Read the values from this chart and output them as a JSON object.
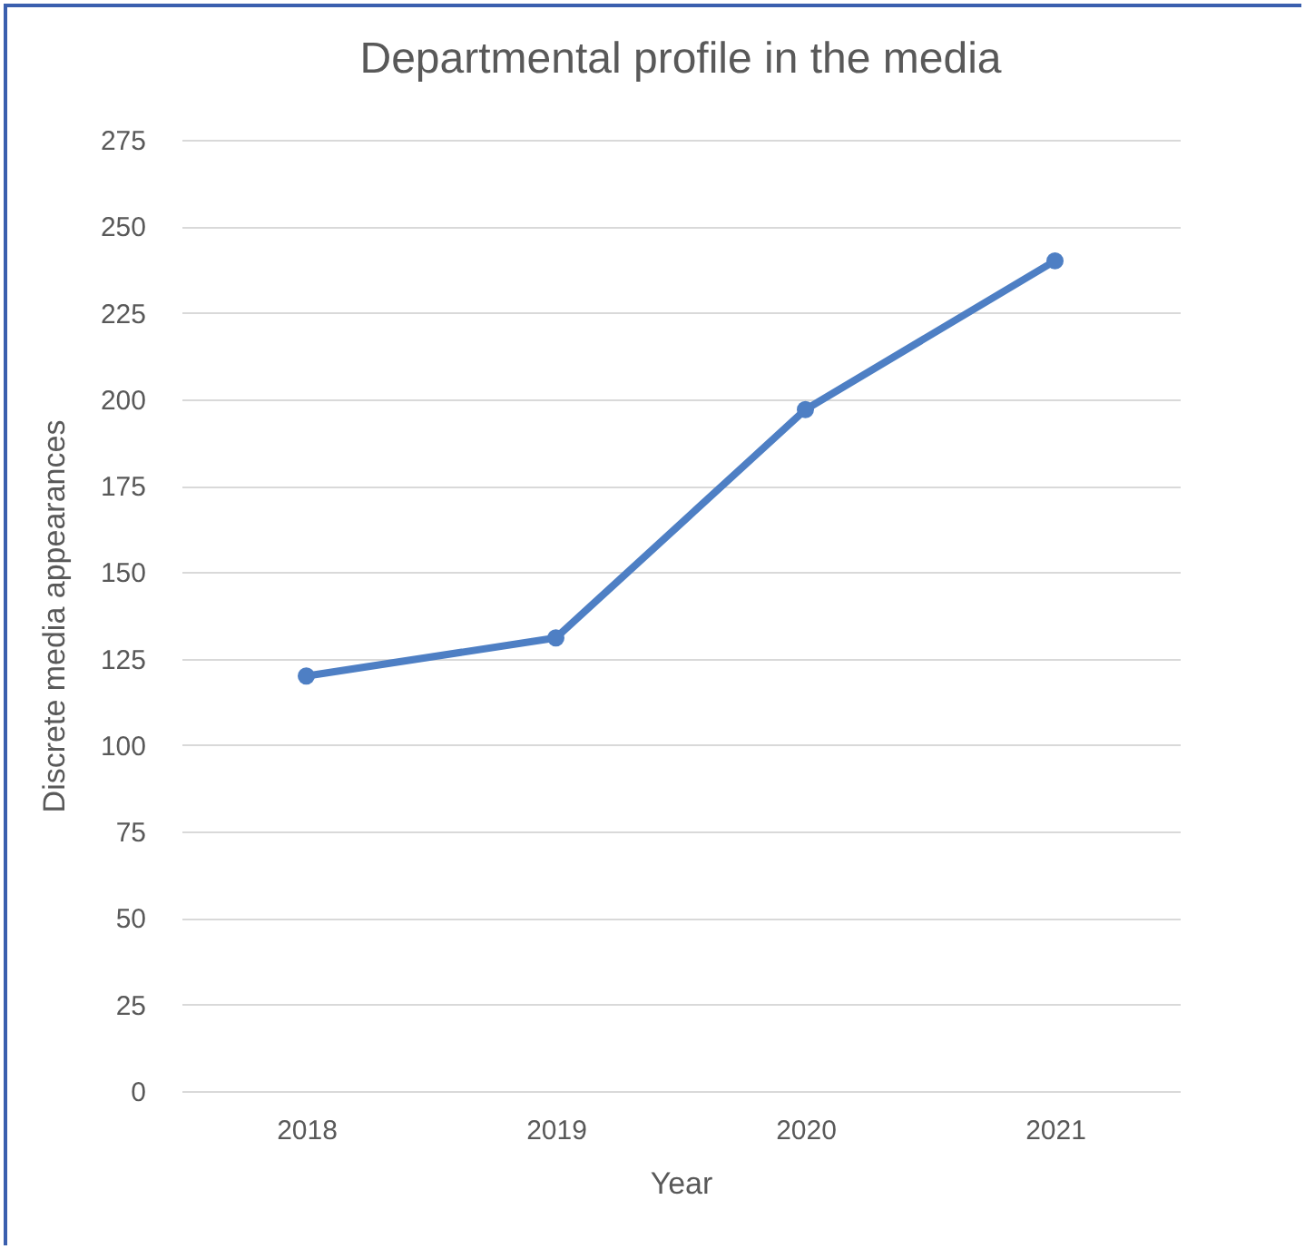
{
  "chart_data": {
    "type": "line",
    "title": "Departmental profile in the media",
    "xlabel": "Year",
    "ylabel": "Discrete media appearances",
    "categories": [
      "2018",
      "2019",
      "2020",
      "2021"
    ],
    "series": [
      {
        "color": "#4e7fc4",
        "values": [
          120,
          131,
          197,
          240
        ]
      }
    ],
    "ylim": [
      0,
      275
    ],
    "yticks": [
      0,
      25,
      50,
      75,
      100,
      125,
      150,
      175,
      200,
      225,
      250,
      275
    ],
    "grid": "y",
    "marker": "circle",
    "line_style": "solid"
  }
}
